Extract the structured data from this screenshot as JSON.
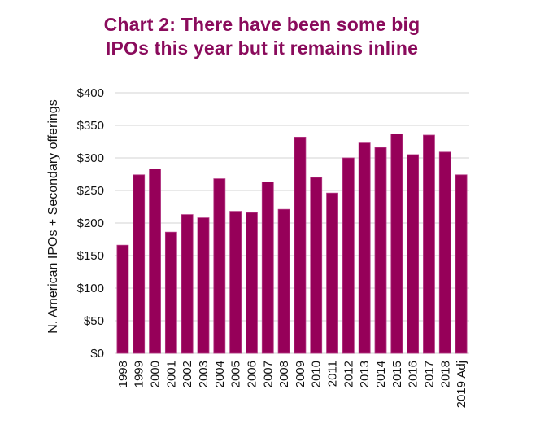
{
  "chart_data": {
    "type": "bar",
    "title": [
      "Chart 2: There have been some big",
      "IPOs this year but it remains inline"
    ],
    "xlabel": "",
    "ylabel": "N. American IPOs + Secondary offerings",
    "ylim": [
      0,
      400
    ],
    "yticks": [
      0,
      50,
      100,
      150,
      200,
      250,
      300,
      350,
      400
    ],
    "ytick_labels": [
      "$0",
      "$50",
      "$100",
      "$150",
      "$200",
      "$250",
      "$300",
      "$350",
      "$400"
    ],
    "grid": true,
    "legend": null,
    "categories": [
      "1998",
      "1999",
      "2000",
      "2001",
      "2002",
      "2003",
      "2004",
      "2005",
      "2006",
      "2007",
      "2008",
      "2009",
      "2010",
      "2011",
      "2012",
      "2013",
      "2014",
      "2015",
      "2016",
      "2017",
      "2018",
      "2019 Adj"
    ],
    "values": [
      166,
      274,
      283,
      186,
      213,
      208,
      268,
      218,
      216,
      263,
      221,
      332,
      270,
      246,
      300,
      323,
      316,
      337,
      305,
      335,
      309,
      274
    ],
    "colors": {
      "bar": "#960059",
      "title": "#8a0b5c",
      "grid": "#dcdcdc"
    }
  }
}
